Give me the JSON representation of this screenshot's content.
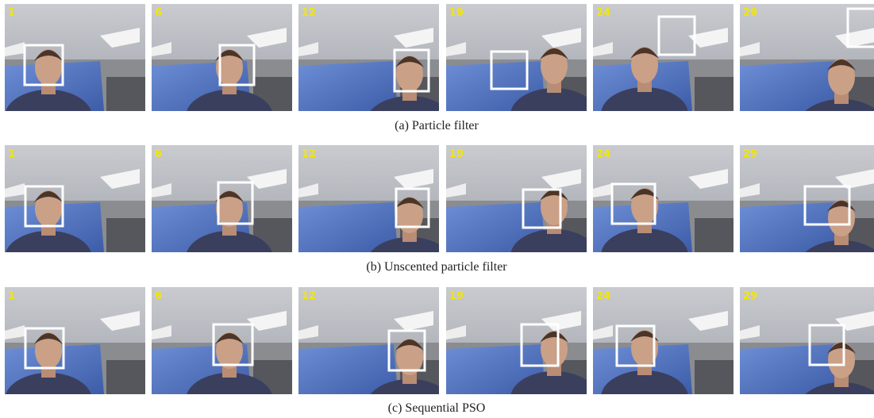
{
  "rows": [
    {
      "caption": "(a) Particle filter",
      "frames": [
        "1",
        "6",
        "12",
        "19",
        "24",
        "29"
      ]
    },
    {
      "caption": "(b) Unscented particle filter",
      "frames": [
        "1",
        "6",
        "12",
        "19",
        "24",
        "29"
      ]
    },
    {
      "caption": "(c) Sequential PSO",
      "frames": [
        "1",
        "6",
        "12",
        "19",
        "24",
        "29"
      ]
    }
  ]
}
